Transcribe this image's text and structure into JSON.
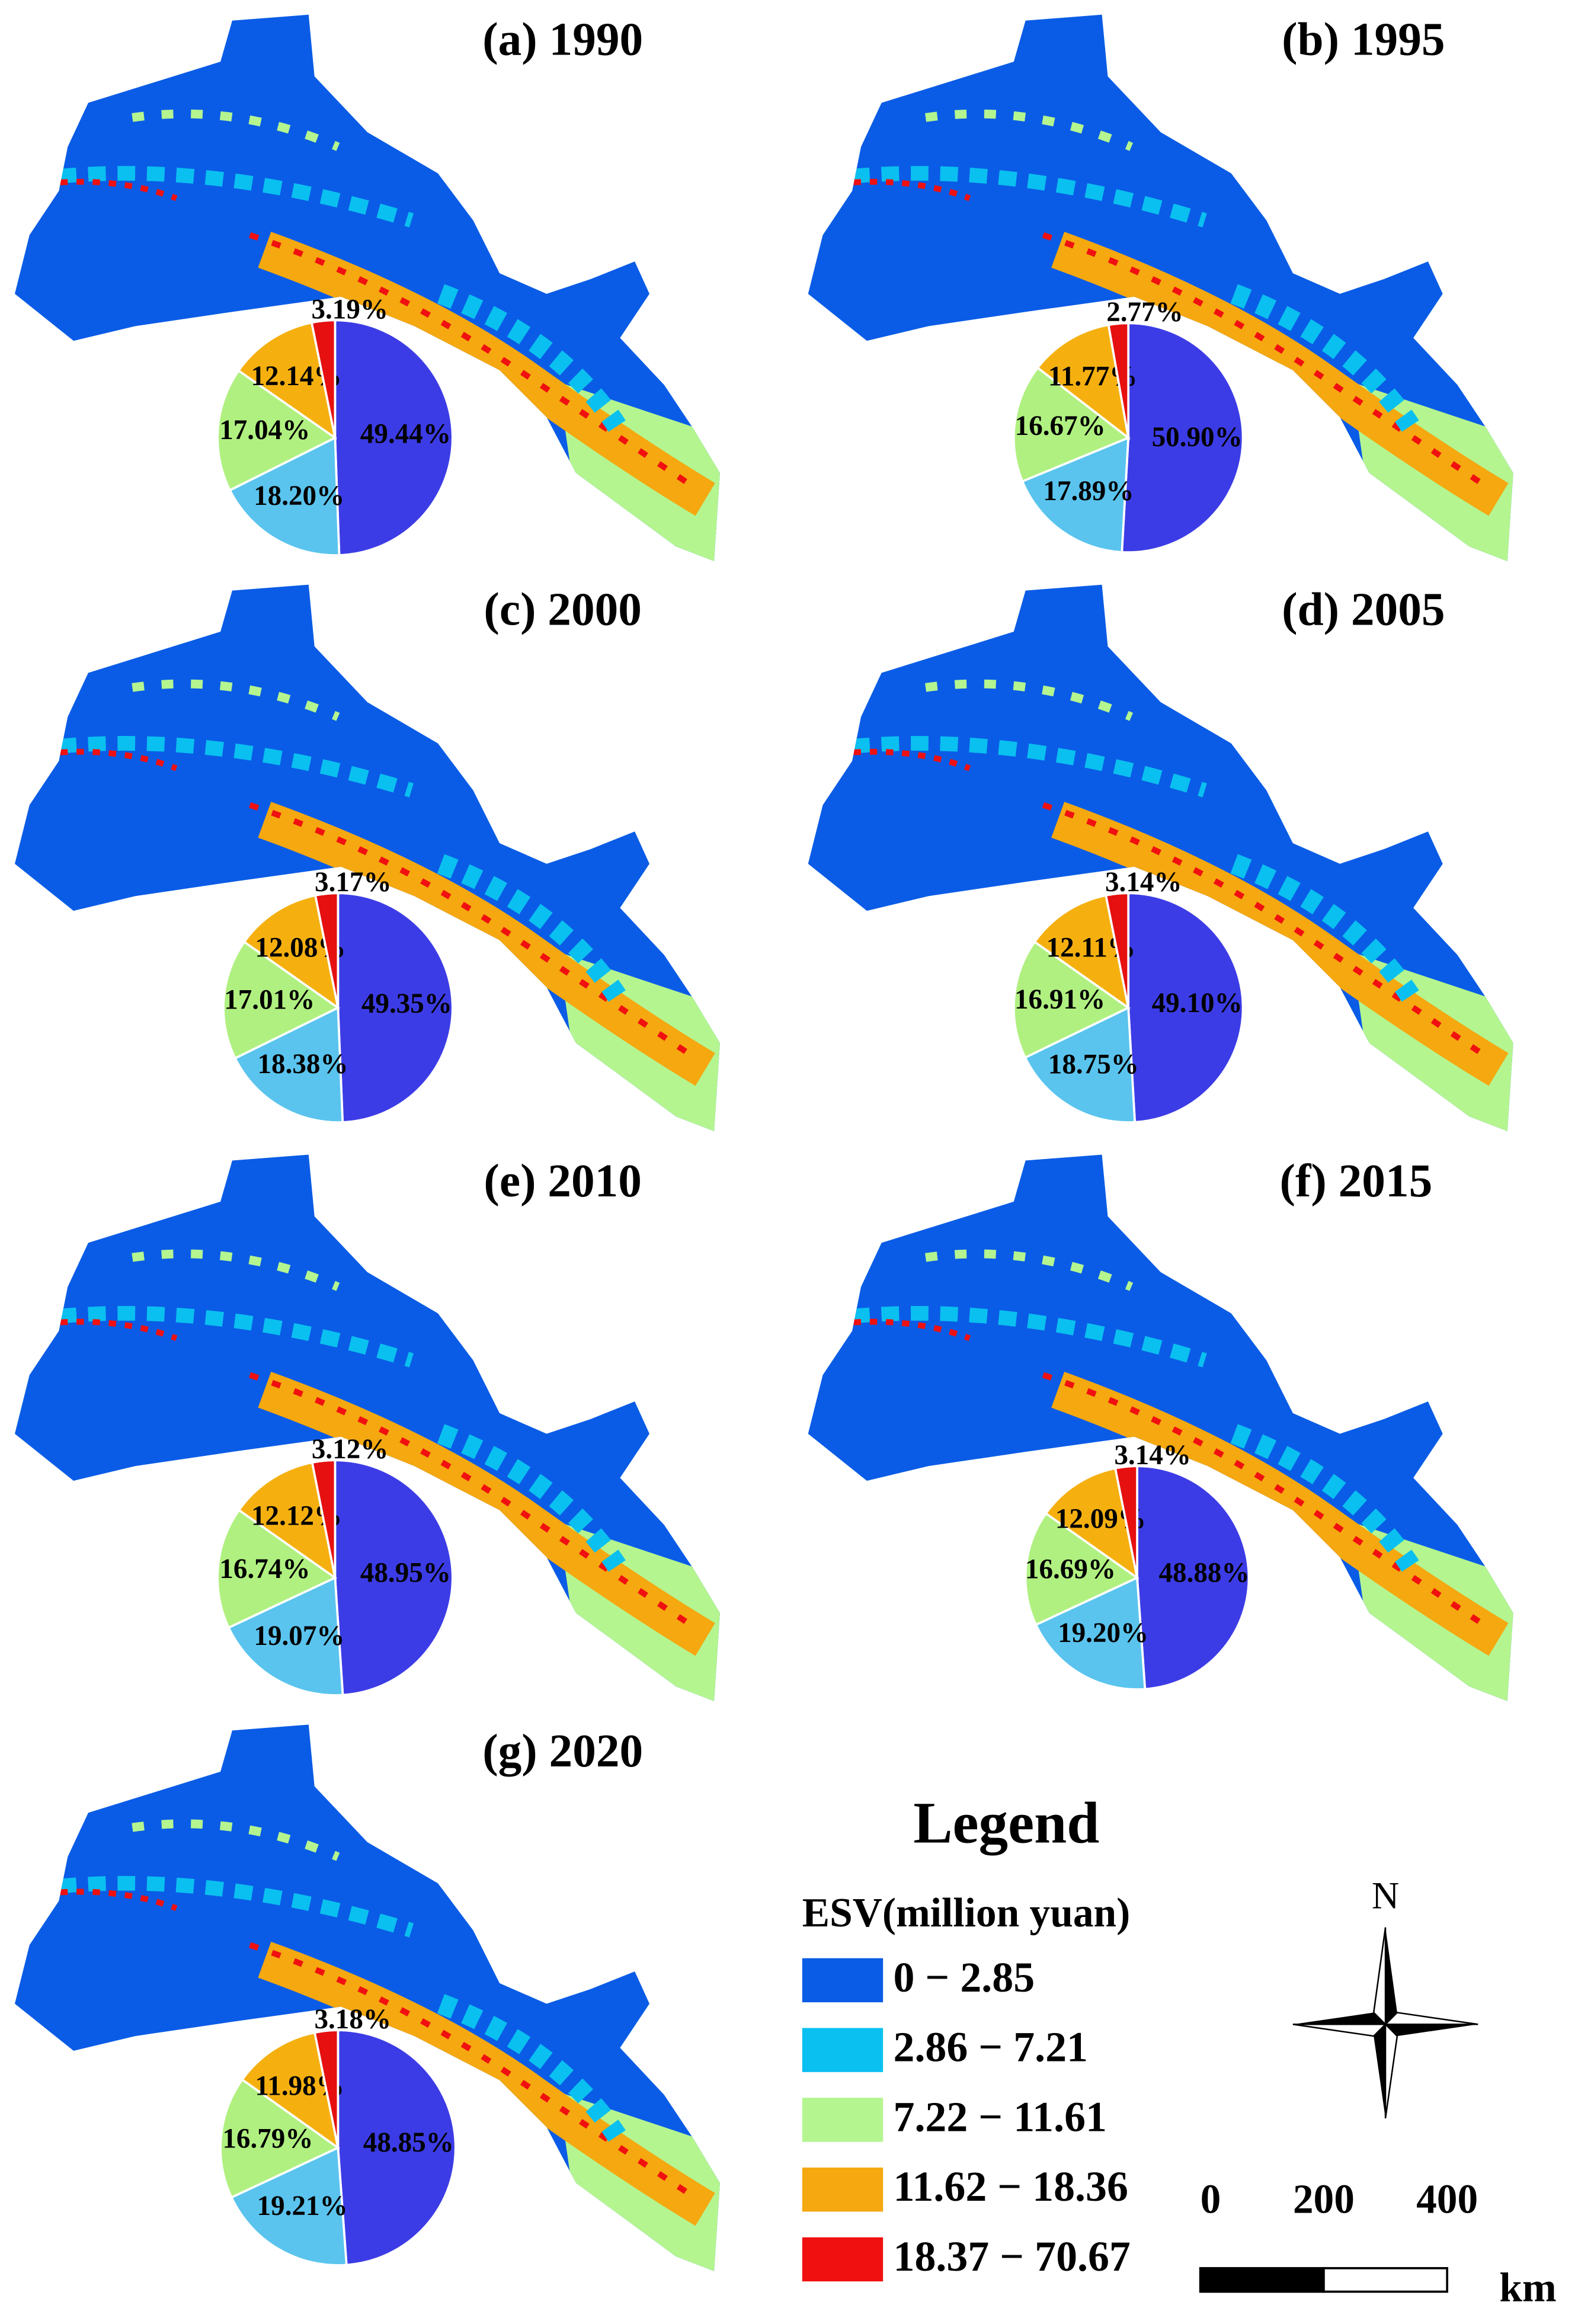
{
  "chart_data": [
    {
      "type": "pie",
      "title": "(a) 1990",
      "values": [
        49.44,
        18.2,
        17.04,
        12.14,
        3.19
      ],
      "value_labels": [
        "49.44%",
        "18.20%",
        "17.04%",
        "12.14%",
        "3.19%"
      ],
      "colors": [
        "#3c3ce6",
        "#5ac4ee",
        "#b0f080",
        "#f5b010",
        "#e61010"
      ]
    },
    {
      "type": "pie",
      "title": "(b) 1995",
      "values": [
        50.9,
        17.89,
        16.67,
        11.77,
        2.77
      ],
      "value_labels": [
        "50.90%",
        "17.89%",
        "16.67%",
        "11.77%",
        "2.77%"
      ],
      "colors": [
        "#3c3ce6",
        "#5ac4ee",
        "#b0f080",
        "#f5b010",
        "#e61010"
      ]
    },
    {
      "type": "pie",
      "title": "(c) 2000",
      "values": [
        49.35,
        18.38,
        17.01,
        12.08,
        3.17
      ],
      "value_labels": [
        "49.35%",
        "18.38%",
        "17.01%",
        "12.08%",
        "3.17%"
      ],
      "colors": [
        "#3c3ce6",
        "#5ac4ee",
        "#b0f080",
        "#f5b010",
        "#e61010"
      ]
    },
    {
      "type": "pie",
      "title": "(d) 2005",
      "values": [
        49.1,
        18.75,
        16.91,
        12.11,
        3.14
      ],
      "value_labels": [
        "49.10%",
        "18.75%",
        "16.91%",
        "12.11%",
        "3.14%"
      ],
      "colors": [
        "#3c3ce6",
        "#5ac4ee",
        "#b0f080",
        "#f5b010",
        "#e61010"
      ]
    },
    {
      "type": "pie",
      "title": "(e) 2010",
      "values": [
        48.95,
        19.07,
        16.74,
        12.12,
        3.12
      ],
      "value_labels": [
        "48.95%",
        "19.07%",
        "16.74%",
        "12.12%",
        "3.12%"
      ],
      "colors": [
        "#3c3ce6",
        "#5ac4ee",
        "#b0f080",
        "#f5b010",
        "#e61010"
      ]
    },
    {
      "type": "pie",
      "title": "(f) 2015",
      "values": [
        48.88,
        19.2,
        16.69,
        12.09,
        3.14
      ],
      "value_labels": [
        "48.88%",
        "19.20%",
        "16.69%",
        "12.09%",
        "3.14%"
      ],
      "colors": [
        "#3c3ce6",
        "#5ac4ee",
        "#b0f080",
        "#f5b010",
        "#e61010"
      ]
    },
    {
      "type": "pie",
      "title": "(g) 2020",
      "values": [
        48.85,
        19.21,
        16.79,
        11.98,
        3.18
      ],
      "value_labels": [
        "48.85%",
        "19.21%",
        "16.79%",
        "11.98%",
        "3.18%"
      ],
      "colors": [
        "#3c3ce6",
        "#5ac4ee",
        "#b0f080",
        "#f5b010",
        "#e61010"
      ]
    }
  ],
  "legend": {
    "title": "Legend",
    "subtitle": "ESV(million yuan)",
    "items": [
      {
        "label": "0 − 2.85",
        "color": "#0a5ce6"
      },
      {
        "label": "2.86 − 7.21",
        "color": "#0ac0f0"
      },
      {
        "label": "7.22 − 11.61",
        "color": "#b4f590"
      },
      {
        "label": "11.62 − 18.36",
        "color": "#f5a810"
      },
      {
        "label": "18.37 − 70.67",
        "color": "#f01010"
      }
    ]
  },
  "north_arrow": "N",
  "scale_bar": {
    "ticks": [
      0,
      200,
      400
    ],
    "unit": "km"
  }
}
